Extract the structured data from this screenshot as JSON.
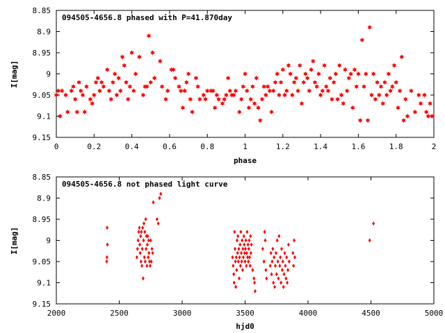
{
  "chart_data": [
    {
      "type": "scatter",
      "title": "094505-4656.8 phased with P=41.870day",
      "xlabel": "phase",
      "ylabel": "I[mag]",
      "xlim": [
        0,
        2
      ],
      "ylim": [
        9.15,
        8.85
      ],
      "y_inverted": true,
      "xticks": [
        "0",
        "0.2",
        "0.4",
        "0.6",
        "0.8",
        "1",
        "1.2",
        "1.4",
        "1.6",
        "1.8",
        "2"
      ],
      "yticks": [
        "8.85",
        "8.9",
        "8.95",
        "9",
        "9.05",
        "9.1",
        "9.15"
      ],
      "grid": false,
      "legend": "none",
      "marker": "star",
      "color": "#ff0000",
      "points": [
        [
          0.0,
          9.05
        ],
        [
          0.01,
          9.04
        ],
        [
          0.02,
          9.1
        ],
        [
          0.03,
          9.04
        ],
        [
          0.05,
          9.05
        ],
        [
          0.06,
          9.09
        ],
        [
          0.08,
          9.04
        ],
        [
          0.09,
          9.03
        ],
        [
          0.1,
          9.06
        ],
        [
          0.11,
          9.09
        ],
        [
          0.12,
          9.02
        ],
        [
          0.13,
          9.04
        ],
        [
          0.14,
          9.05
        ],
        [
          0.15,
          9.09
        ],
        [
          0.16,
          9.03
        ],
        [
          0.18,
          9.06
        ],
        [
          0.19,
          9.07
        ],
        [
          0.2,
          9.05
        ],
        [
          0.21,
          9.02
        ],
        [
          0.22,
          9.01
        ],
        [
          0.23,
          9.04
        ],
        [
          0.24,
          9.02
        ],
        [
          0.25,
          9.03
        ],
        [
          0.27,
          8.99
        ],
        [
          0.28,
          9.04
        ],
        [
          0.29,
          9.06
        ],
        [
          0.3,
          9.02
        ],
        [
          0.31,
          9.0
        ],
        [
          0.32,
          9.05
        ],
        [
          0.33,
          9.01
        ],
        [
          0.34,
          9.04
        ],
        [
          0.35,
          8.96
        ],
        [
          0.36,
          8.98
        ],
        [
          0.37,
          9.02
        ],
        [
          0.38,
          9.06
        ],
        [
          0.39,
          9.03
        ],
        [
          0.4,
          8.95
        ],
        [
          0.41,
          9.04
        ],
        [
          0.42,
          9.0
        ],
        [
          0.44,
          8.96
        ],
        [
          0.46,
          9.05
        ],
        [
          0.47,
          9.03
        ],
        [
          0.48,
          9.03
        ],
        [
          0.49,
          8.91
        ],
        [
          0.5,
          9.02
        ],
        [
          0.51,
          8.95
        ],
        [
          0.52,
          9.01
        ],
        [
          0.55,
          8.97
        ],
        [
          0.56,
          9.03
        ],
        [
          0.58,
          9.06
        ],
        [
          0.59,
          9.04
        ],
        [
          0.61,
          8.99
        ],
        [
          0.62,
          8.99
        ],
        [
          0.63,
          9.01
        ],
        [
          0.65,
          9.03
        ],
        [
          0.66,
          9.04
        ],
        [
          0.67,
          9.08
        ],
        [
          0.68,
          9.04
        ],
        [
          0.69,
          9.02
        ],
        [
          0.7,
          9.0
        ],
        [
          0.71,
          9.06
        ],
        [
          0.72,
          9.09
        ],
        [
          0.74,
          9.01
        ],
        [
          0.75,
          9.03
        ],
        [
          0.76,
          9.06
        ],
        [
          0.78,
          9.05
        ],
        [
          0.79,
          9.06
        ],
        [
          0.8,
          9.04
        ],
        [
          0.82,
          9.04
        ],
        [
          0.83,
          9.04
        ],
        [
          0.84,
          9.08
        ],
        [
          0.85,
          9.05
        ],
        [
          0.86,
          9.06
        ],
        [
          0.88,
          9.07
        ],
        [
          0.89,
          9.06
        ],
        [
          0.9,
          9.05
        ],
        [
          0.91,
          9.01
        ],
        [
          0.92,
          9.04
        ],
        [
          0.93,
          9.05
        ],
        [
          0.94,
          9.05
        ],
        [
          0.95,
          9.04
        ],
        [
          0.97,
          9.09
        ],
        [
          0.98,
          9.06
        ],
        [
          0.99,
          9.03
        ],
        [
          1.0,
          9.0
        ],
        [
          1.01,
          9.04
        ],
        [
          1.02,
          9.08
        ],
        [
          1.03,
          9.06
        ],
        [
          1.04,
          9.03
        ],
        [
          1.05,
          9.07
        ],
        [
          1.06,
          9.01
        ],
        [
          1.07,
          9.08
        ],
        [
          1.08,
          9.11
        ],
        [
          1.09,
          9.06
        ],
        [
          1.1,
          9.03
        ],
        [
          1.11,
          9.05
        ],
        [
          1.12,
          9.03
        ],
        [
          1.13,
          9.04
        ],
        [
          1.14,
          9.09
        ],
        [
          1.15,
          9.04
        ],
        [
          1.16,
          9.02
        ],
        [
          1.17,
          9.0
        ],
        [
          1.18,
          9.05
        ],
        [
          1.19,
          9.02
        ],
        [
          1.2,
          8.99
        ],
        [
          1.21,
          9.05
        ],
        [
          1.22,
          9.04
        ],
        [
          1.23,
          8.98
        ],
        [
          1.24,
          9.0
        ],
        [
          1.25,
          9.05
        ],
        [
          1.26,
          9.02
        ],
        [
          1.27,
          9.01
        ],
        [
          1.28,
          9.04
        ],
        [
          1.29,
          8.98
        ],
        [
          1.3,
          9.07
        ],
        [
          1.31,
          9.02
        ],
        [
          1.32,
          9.0
        ],
        [
          1.33,
          9.01
        ],
        [
          1.34,
          9.04
        ],
        [
          1.35,
          8.99
        ],
        [
          1.36,
          8.97
        ],
        [
          1.37,
          9.02
        ],
        [
          1.38,
          9.03
        ],
        [
          1.39,
          9.0
        ],
        [
          1.4,
          9.05
        ],
        [
          1.41,
          9.04
        ],
        [
          1.42,
          8.98
        ],
        [
          1.43,
          9.03
        ],
        [
          1.44,
          9.04
        ],
        [
          1.45,
          9.01
        ],
        [
          1.46,
          9.06
        ],
        [
          1.47,
          9.02
        ],
        [
          1.48,
          9.0
        ],
        [
          1.49,
          9.06
        ],
        [
          1.5,
          8.98
        ],
        [
          1.51,
          9.05
        ],
        [
          1.52,
          9.07
        ],
        [
          1.53,
          8.99
        ],
        [
          1.54,
          9.04
        ],
        [
          1.55,
          9.01
        ],
        [
          1.56,
          9.0
        ],
        [
          1.57,
          9.08
        ],
        [
          1.58,
          8.99
        ],
        [
          1.59,
          9.03
        ],
        [
          1.6,
          9.0
        ],
        [
          1.61,
          9.11
        ],
        [
          1.62,
          8.92
        ],
        [
          1.63,
          9.03
        ],
        [
          1.64,
          9.0
        ],
        [
          1.65,
          9.11
        ],
        [
          1.66,
          8.89
        ],
        [
          1.67,
          9.05
        ],
        [
          1.68,
          9.0
        ],
        [
          1.69,
          9.06
        ],
        [
          1.7,
          9.02
        ],
        [
          1.71,
          9.05
        ],
        [
          1.72,
          9.03
        ],
        [
          1.73,
          9.07
        ],
        [
          1.74,
          9.02
        ],
        [
          1.75,
          9.05
        ],
        [
          1.76,
          9.0
        ],
        [
          1.77,
          9.04
        ],
        [
          1.78,
          9.03
        ],
        [
          1.79,
          8.98
        ],
        [
          1.8,
          9.02
        ],
        [
          1.81,
          9.08
        ],
        [
          1.82,
          9.04
        ],
        [
          1.83,
          8.96
        ],
        [
          1.84,
          9.11
        ],
        [
          1.85,
          9.06
        ],
        [
          1.86,
          9.1
        ],
        [
          1.88,
          9.04
        ],
        [
          1.9,
          9.09
        ],
        [
          1.92,
          9.05
        ],
        [
          1.93,
          9.07
        ],
        [
          1.95,
          9.05
        ],
        [
          1.96,
          9.09
        ],
        [
          1.97,
          9.1
        ],
        [
          1.98,
          9.07
        ],
        [
          1.99,
          9.1
        ]
      ]
    },
    {
      "type": "scatter",
      "title": "094505-4656.8 not phased light curve",
      "xlabel": "hjd0",
      "ylabel": "I[mag]",
      "xlim": [
        2000,
        5000
      ],
      "ylim": [
        9.15,
        8.85
      ],
      "y_inverted": true,
      "xticks": [
        "2000",
        "2500",
        "3000",
        "3500",
        "4000",
        "4500",
        "5000"
      ],
      "yticks": [
        "8.85",
        "8.9",
        "8.95",
        "9",
        "9.05",
        "9.1",
        "9.15"
      ],
      "grid": false,
      "legend": "none",
      "marker": "diamond",
      "color": "#ff0000",
      "points": [
        [
          2400,
          9.05
        ],
        [
          2402,
          9.04
        ],
        [
          2404,
          8.97
        ],
        [
          2406,
          9.01
        ],
        [
          2640,
          9.04
        ],
        [
          2645,
          9.02
        ],
        [
          2650,
          9.0
        ],
        [
          2655,
          8.98
        ],
        [
          2660,
          8.97
        ],
        [
          2663,
          9.01
        ],
        [
          2666,
          9.03
        ],
        [
          2670,
          8.99
        ],
        [
          2673,
          9.05
        ],
        [
          2676,
          8.98
        ],
        [
          2680,
          9.06
        ],
        [
          2683,
          9.02
        ],
        [
          2686,
          8.97
        ],
        [
          2690,
          9.09
        ],
        [
          2693,
          9.0
        ],
        [
          2696,
          8.96
        ],
        [
          2700,
          9.04
        ],
        [
          2703,
          8.98
        ],
        [
          2706,
          9.05
        ],
        [
          2710,
          8.95
        ],
        [
          2713,
          9.02
        ],
        [
          2716,
          8.99
        ],
        [
          2720,
          9.06
        ],
        [
          2723,
          9.01
        ],
        [
          2726,
          8.99
        ],
        [
          2730,
          9.04
        ],
        [
          2733,
          9.0
        ],
        [
          2736,
          9.03
        ],
        [
          2740,
          9.05
        ],
        [
          2745,
          9.06
        ],
        [
          2750,
          9.0
        ],
        [
          2755,
          9.05
        ],
        [
          2760,
          9.02
        ],
        [
          2765,
          9.03
        ],
        [
          2770,
          8.91
        ],
        [
          2800,
          8.95
        ],
        [
          2810,
          8.96
        ],
        [
          2820,
          8.9
        ],
        [
          2830,
          8.89
        ],
        [
          3400,
          9.04
        ],
        [
          3405,
          9.06
        ],
        [
          3410,
          9.08
        ],
        [
          3413,
          9.1
        ],
        [
          3416,
          8.98
        ],
        [
          3420,
          9.02
        ],
        [
          3423,
          9.05
        ],
        [
          3426,
          9.11
        ],
        [
          3430,
          9.04
        ],
        [
          3433,
          9.07
        ],
        [
          3436,
          9.0
        ],
        [
          3440,
          9.03
        ],
        [
          3443,
          8.99
        ],
        [
          3446,
          9.05
        ],
        [
          3450,
          9.02
        ],
        [
          3453,
          9.09
        ],
        [
          3456,
          9.04
        ],
        [
          3460,
          9.01
        ],
        [
          3463,
          9.06
        ],
        [
          3466,
          8.98
        ],
        [
          3470,
          9.03
        ],
        [
          3473,
          9.05
        ],
        [
          3476,
          9.0
        ],
        [
          3480,
          9.07
        ],
        [
          3483,
          9.02
        ],
        [
          3486,
          9.04
        ],
        [
          3490,
          8.99
        ],
        [
          3493,
          9.01
        ],
        [
          3496,
          9.03
        ],
        [
          3500,
          9.05
        ],
        [
          3503,
          9.02
        ],
        [
          3506,
          9.0
        ],
        [
          3510,
          9.06
        ],
        [
          3513,
          9.03
        ],
        [
          3516,
          8.98
        ],
        [
          3520,
          9.04
        ],
        [
          3523,
          9.01
        ],
        [
          3526,
          9.05
        ],
        [
          3530,
          9.02
        ],
        [
          3533,
          9.0
        ],
        [
          3536,
          9.04
        ],
        [
          3540,
          9.06
        ],
        [
          3543,
          8.99
        ],
        [
          3546,
          9.03
        ],
        [
          3550,
          9.01
        ],
        [
          3560,
          9.07
        ],
        [
          3570,
          9.09
        ],
        [
          3575,
          9.1
        ],
        [
          3580,
          9.12
        ],
        [
          3640,
          9.02
        ],
        [
          3650,
          9.05
        ],
        [
          3655,
          8.98
        ],
        [
          3660,
          9.0
        ],
        [
          3665,
          9.07
        ],
        [
          3670,
          9.09
        ],
        [
          3700,
          9.06
        ],
        [
          3705,
          9.03
        ],
        [
          3710,
          9.08
        ],
        [
          3715,
          9.05
        ],
        [
          3720,
          9.02
        ],
        [
          3725,
          9.1
        ],
        [
          3730,
          9.04
        ],
        [
          3735,
          9.11
        ],
        [
          3740,
          9.06
        ],
        [
          3745,
          9.03
        ],
        [
          3750,
          9.08
        ],
        [
          3755,
          9.0
        ],
        [
          3760,
          9.05
        ],
        [
          3765,
          9.09
        ],
        [
          3770,
          8.99
        ],
        [
          3775,
          9.06
        ],
        [
          3780,
          9.04
        ],
        [
          3785,
          9.1
        ],
        [
          3790,
          9.02
        ],
        [
          3795,
          9.07
        ],
        [
          3800,
          9.05
        ],
        [
          3805,
          9.11
        ],
        [
          3810,
          9.08
        ],
        [
          3815,
          9.03
        ],
        [
          3820,
          9.06
        ],
        [
          3825,
          9.09
        ],
        [
          3830,
          9.04
        ],
        [
          3835,
          9.1
        ],
        [
          3840,
          9.07
        ],
        [
          3845,
          9.01
        ],
        [
          3850,
          9.05
        ],
        [
          3880,
          9.03
        ],
        [
          3885,
          9.06
        ],
        [
          3890,
          9.0
        ],
        [
          3895,
          9.04
        ],
        [
          4490,
          9.0
        ],
        [
          4520,
          8.96
        ]
      ]
    }
  ]
}
